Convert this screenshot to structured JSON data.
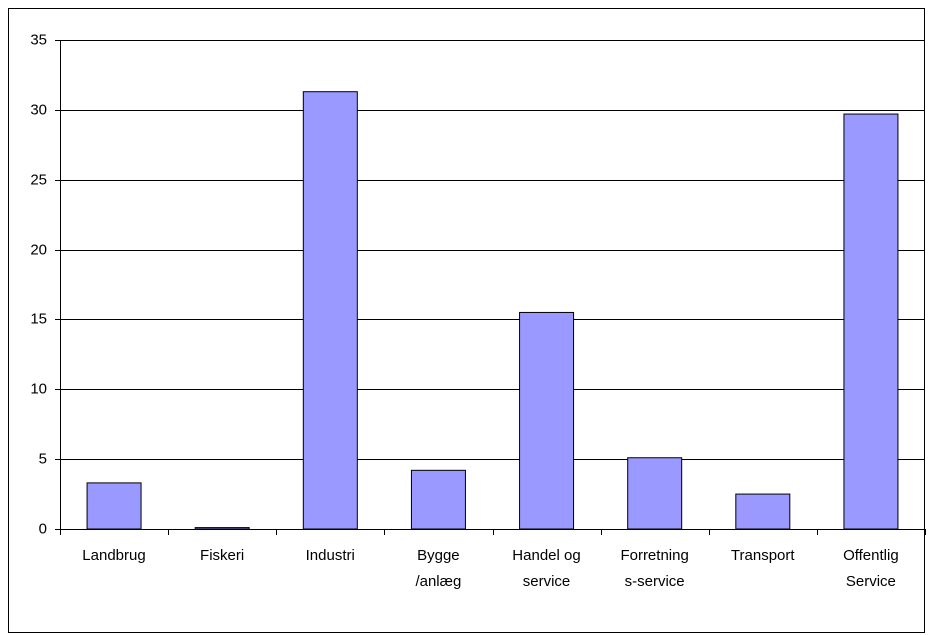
{
  "chart_data": {
    "type": "bar",
    "categories": [
      "Landbrug",
      "Fiskeri",
      "Industri",
      "Bygge\n/anlæg",
      "Handel og\nservice",
      "Forretning\ns-service",
      "Transport",
      "Offentlig\nService"
    ],
    "values": [
      3.3,
      0.1,
      31.3,
      4.2,
      15.5,
      5.1,
      2.5,
      29.7
    ],
    "color": "#9999ff",
    "ylim": [
      0,
      35
    ],
    "yticks": [
      0,
      5,
      10,
      15,
      20,
      25,
      30,
      35
    ],
    "grid": true
  }
}
